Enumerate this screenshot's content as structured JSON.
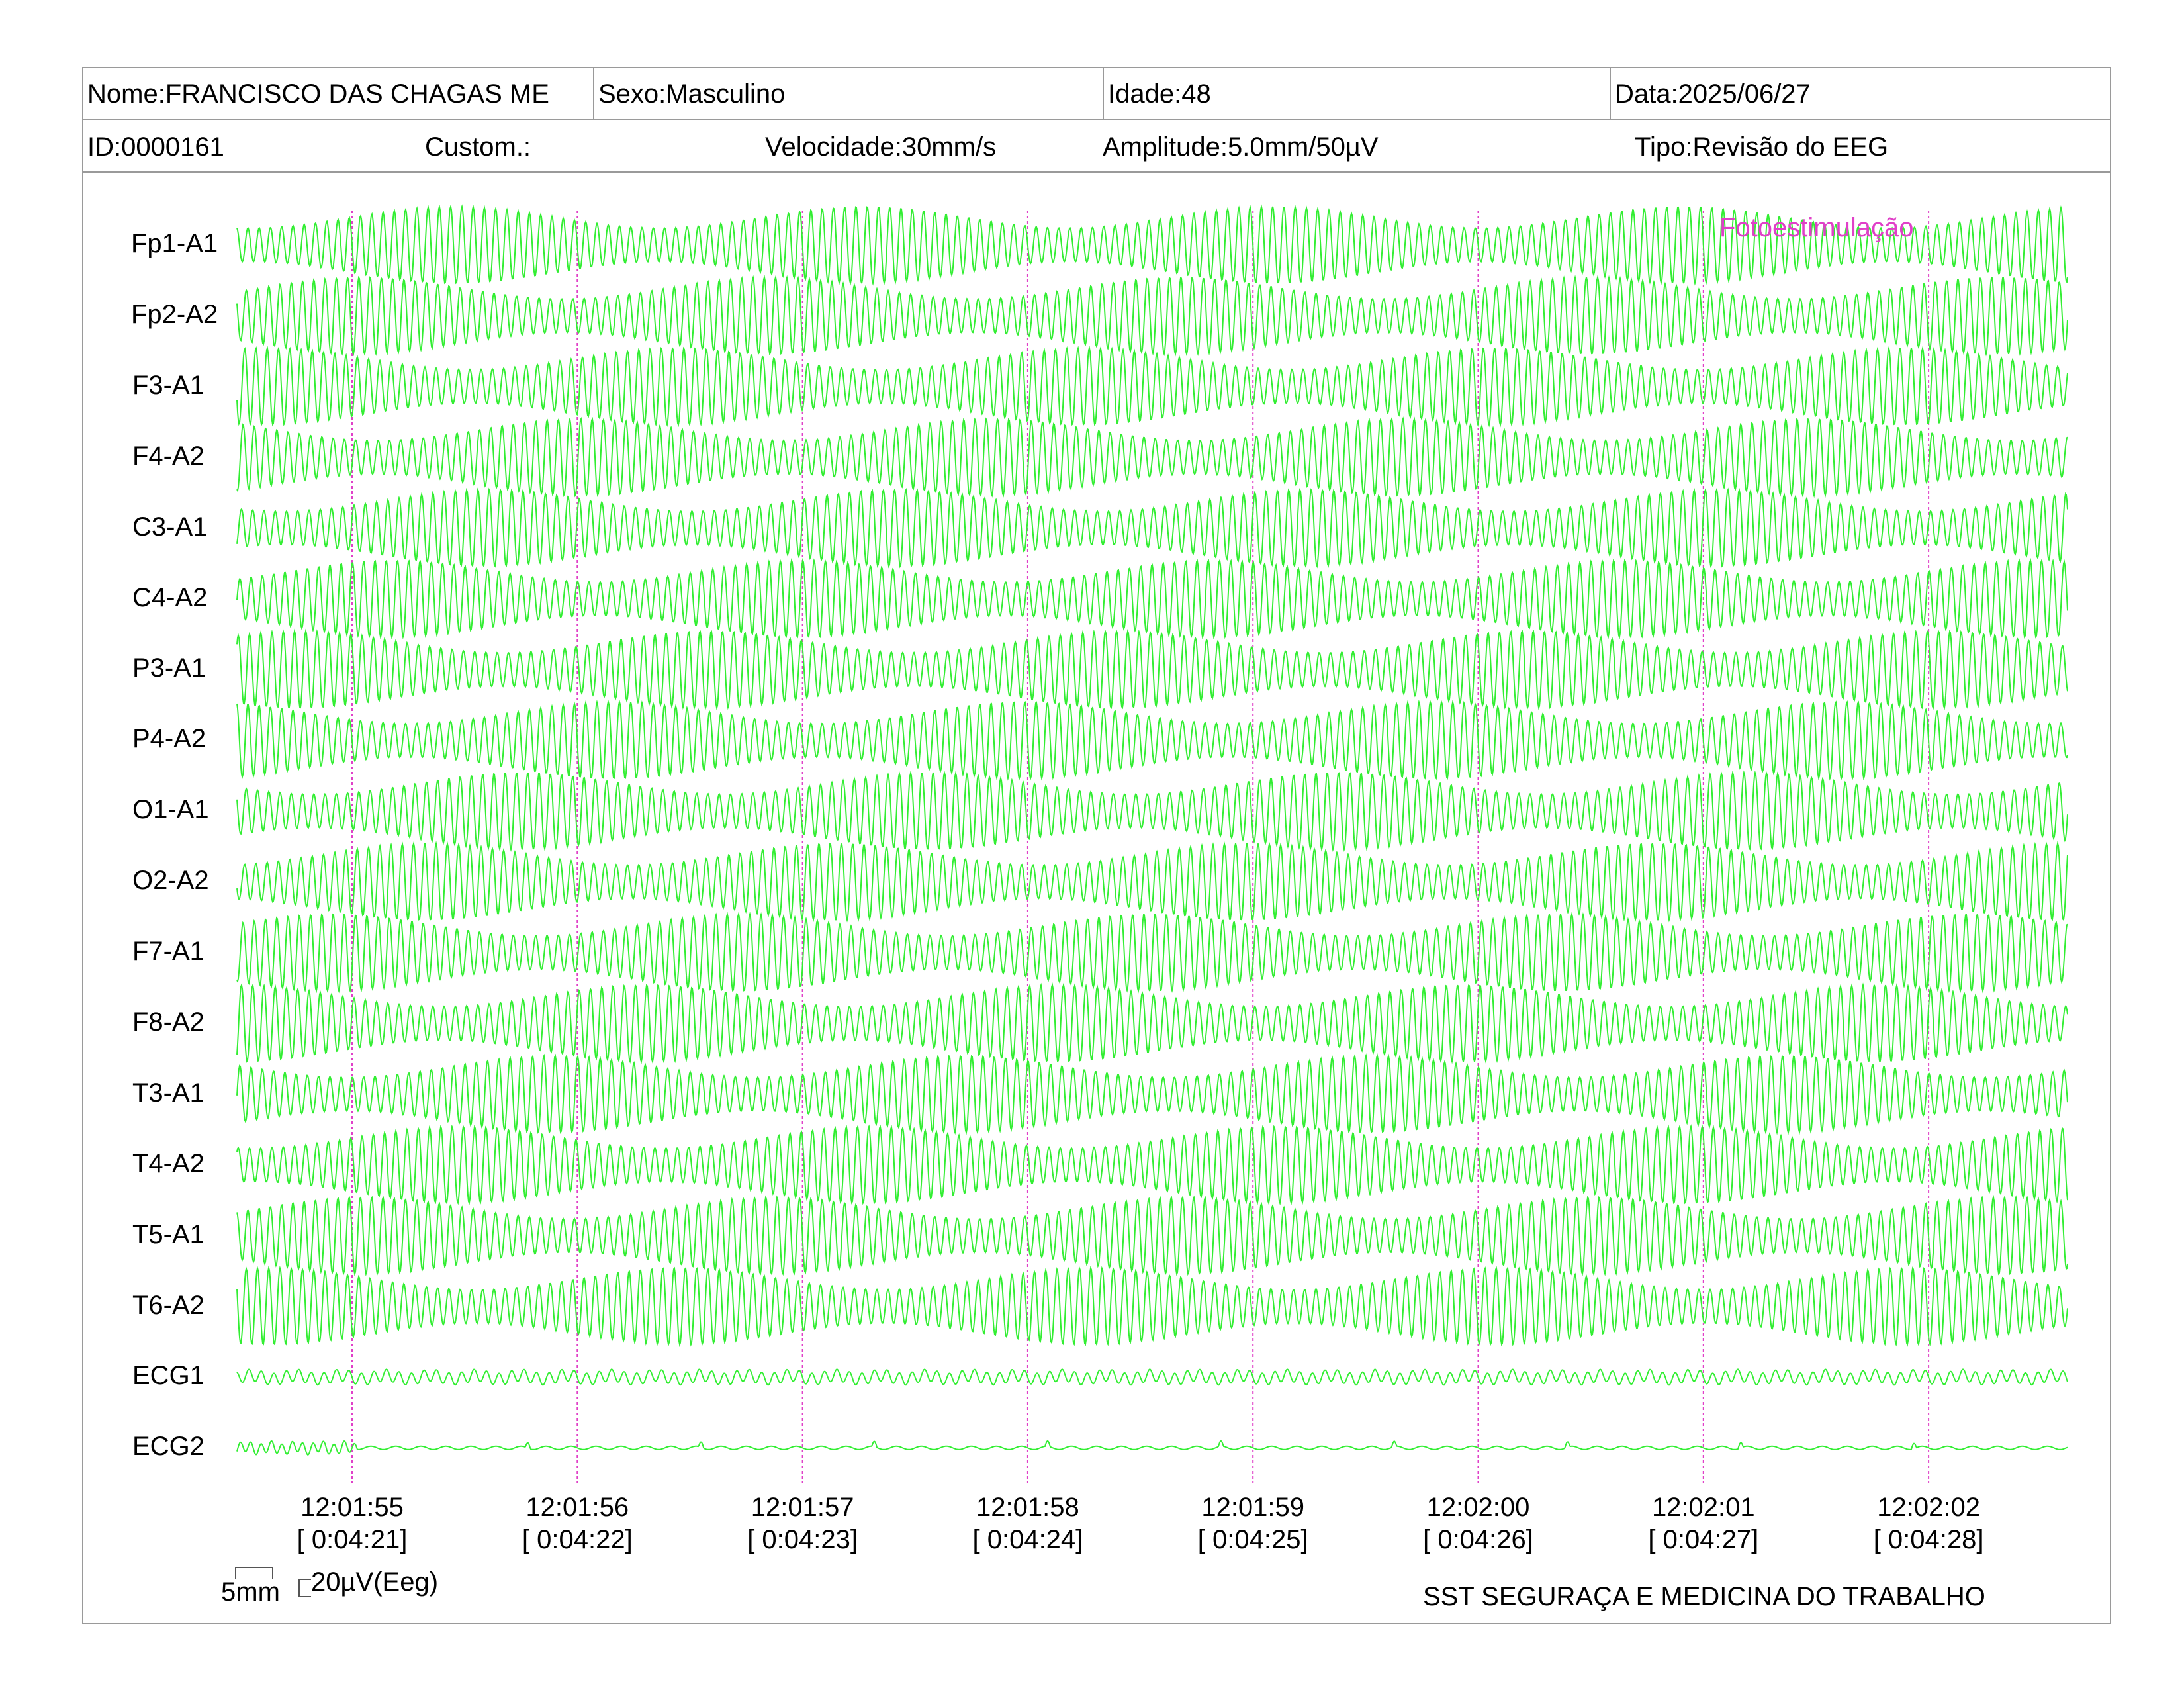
{
  "header": {
    "nome": "Nome:FRANCISCO DAS CHAGAS ME",
    "sexo": "Sexo:Masculino",
    "idade": "Idade:48",
    "data": "Data:2025/06/27",
    "id": "ID:0000161",
    "custom": "Custom.:",
    "velocidade": "Velocidade:30mm/s",
    "amplitude": "Amplitude:5.0mm/50µV",
    "tipo": "Tipo:Revisão do EEG"
  },
  "event_marker": "Fotoestimulação",
  "footer": "SST SEGURAÇA E MEDICINA DO TRABALHO",
  "scale_bar": {
    "time_label": "5mm",
    "amplitude_label": "20µV(Eeg)"
  },
  "colors": {
    "trace": "#33ee33",
    "marker": "#e040c8",
    "frame": "#9a9a9a"
  },
  "chart_data": {
    "type": "line",
    "channels": [
      "Fp1-A1",
      "Fp2-A2",
      "F3-A1",
      "F4-A2",
      "C3-A1",
      "C4-A2",
      "P3-A1",
      "P4-A2",
      "O1-A1",
      "O2-A2",
      "F7-A1",
      "F8-A2",
      "T3-A1",
      "T4-A2",
      "T5-A1",
      "T6-A2",
      "ECG1",
      "ECG2"
    ],
    "time_ticks": [
      "12:01:55",
      "12:01:56",
      "12:01:57",
      "12:01:58",
      "12:01:59",
      "12:02:00",
      "12:02:01",
      "12:02:02"
    ],
    "elapsed_ticks": [
      "[ 0:04:21]",
      "[ 0:04:22]",
      "[ 0:04:23]",
      "[ 0:04:24]",
      "[ 0:04:25]",
      "[ 0:04:26]",
      "[ 0:04:27]",
      "[ 0:04:28]"
    ],
    "x_range_seconds": [
      -0.5,
      7.6
    ],
    "eeg_oscillation_hz": 20,
    "grid": false
  }
}
